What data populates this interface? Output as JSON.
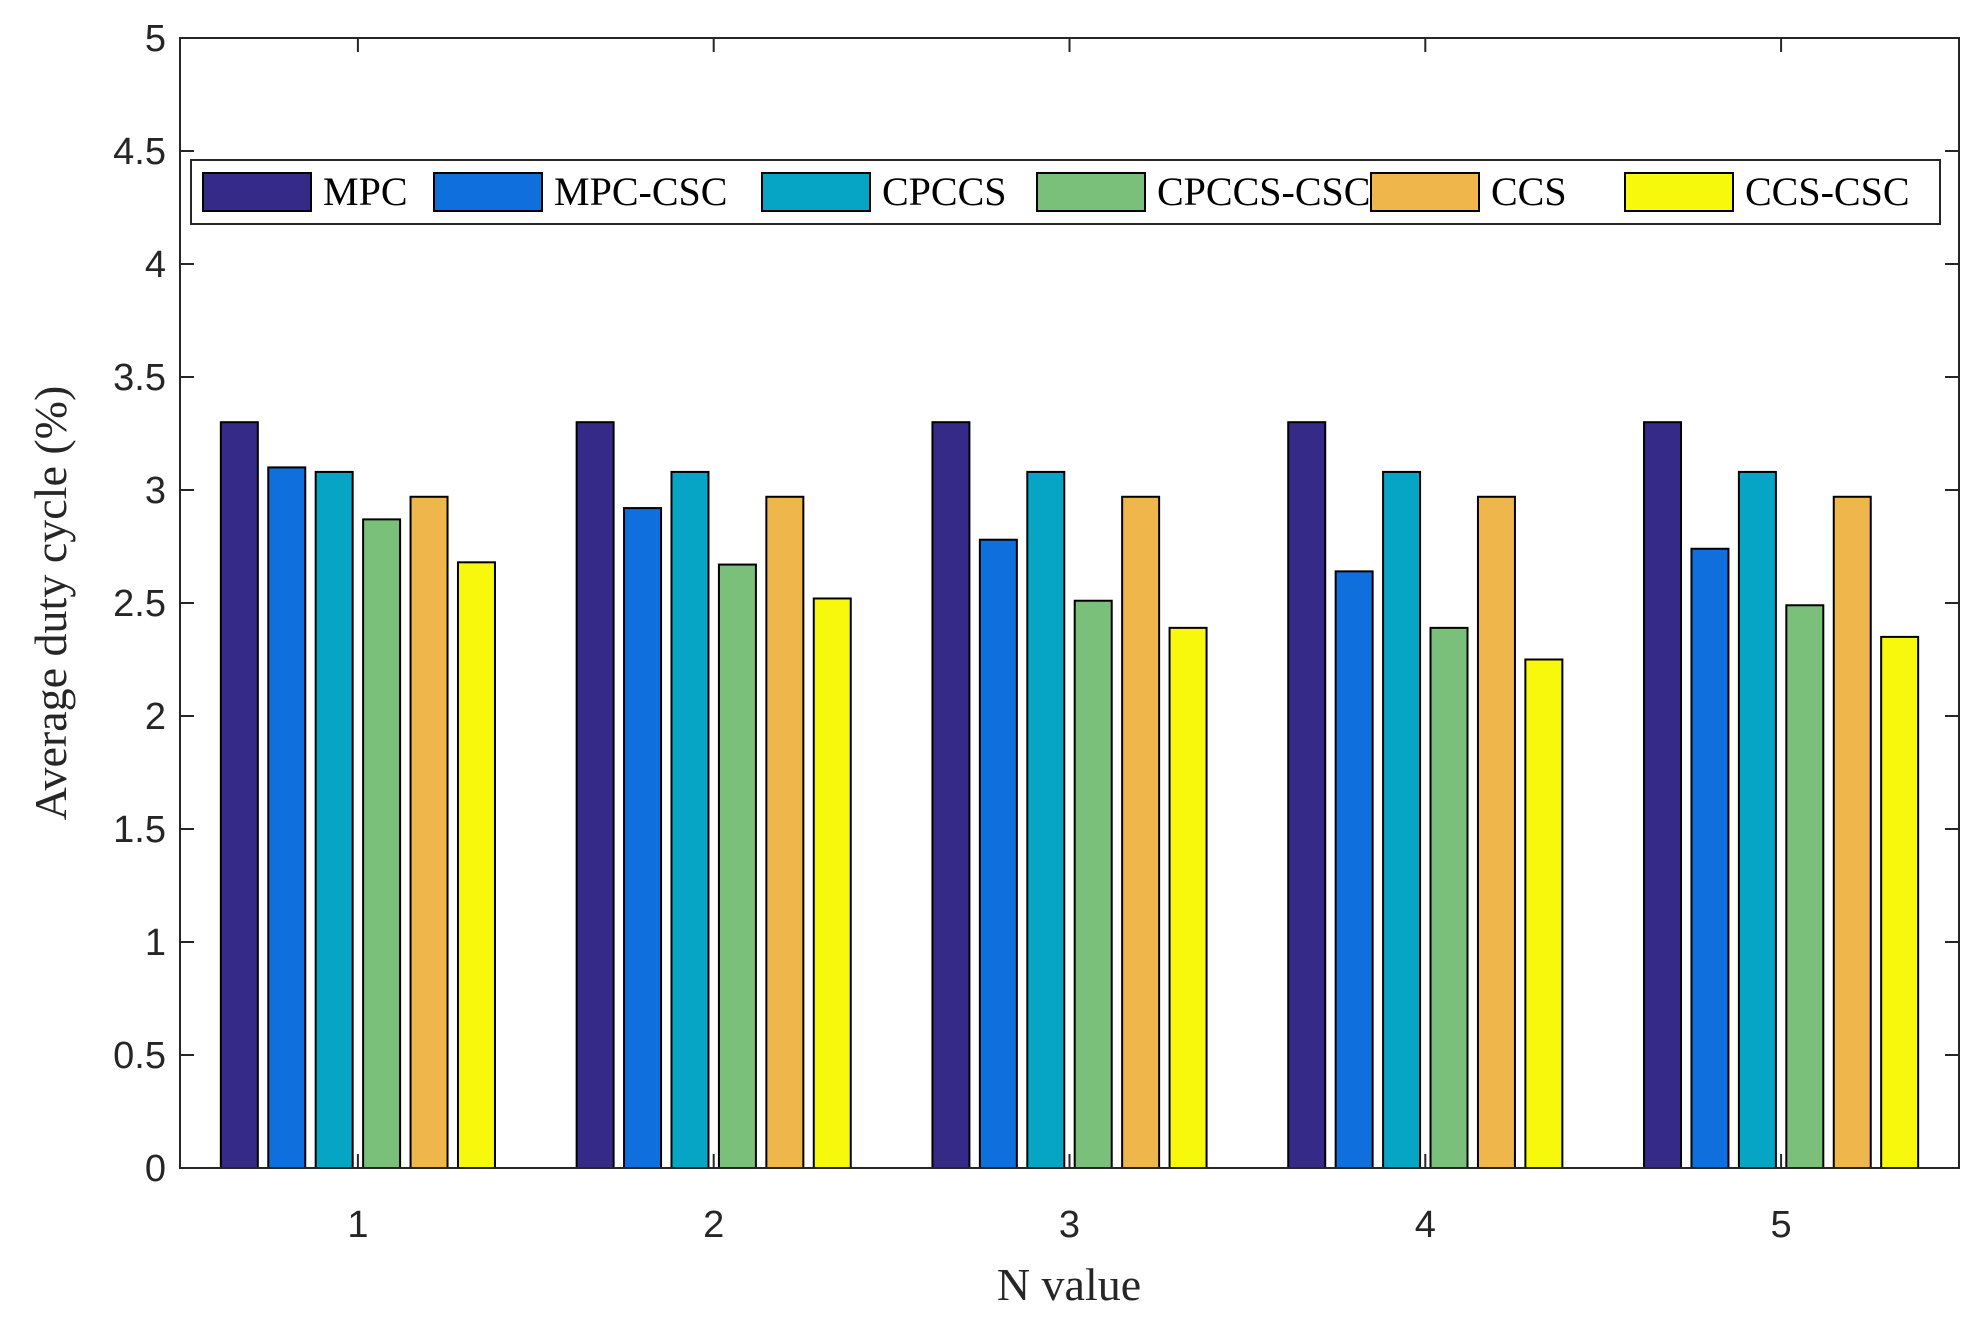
{
  "chart_data": {
    "type": "bar",
    "title": "",
    "xlabel": "N value",
    "ylabel": "Average duty cycle (%)",
    "categories": [
      "1",
      "2",
      "3",
      "4",
      "5"
    ],
    "ylim": [
      0,
      5
    ],
    "yticks": [
      0,
      0.5,
      1,
      1.5,
      2,
      2.5,
      3,
      3.5,
      4,
      4.5,
      5
    ],
    "ytick_labels": [
      "0",
      "0.5",
      "1",
      "1.5",
      "2",
      "2.5",
      "3",
      "3.5",
      "4",
      "4.5",
      "5"
    ],
    "grid": false,
    "legend_position": "top",
    "legend_orientation": "horizontal",
    "series": [
      {
        "name": "MPC",
        "color": "#352a87",
        "values": [
          3.3,
          3.3,
          3.3,
          3.3,
          3.3
        ]
      },
      {
        "name": "MPC-CSC",
        "color": "#0f6fdd",
        "values": [
          3.1,
          2.92,
          2.78,
          2.64,
          2.74
        ]
      },
      {
        "name": "CPCCS",
        "color": "#06a5c5",
        "values": [
          3.08,
          3.08,
          3.08,
          3.08,
          3.08
        ]
      },
      {
        "name": "CPCCS-CSC",
        "color": "#7abf7a",
        "values": [
          2.87,
          2.67,
          2.51,
          2.39,
          2.49
        ]
      },
      {
        "name": "CCS",
        "color": "#efb64b",
        "values": [
          2.97,
          2.97,
          2.97,
          2.97,
          2.97
        ]
      },
      {
        "name": "CCS-CSC",
        "color": "#f8f80d",
        "values": [
          2.68,
          2.52,
          2.39,
          2.25,
          2.35
        ]
      }
    ]
  }
}
